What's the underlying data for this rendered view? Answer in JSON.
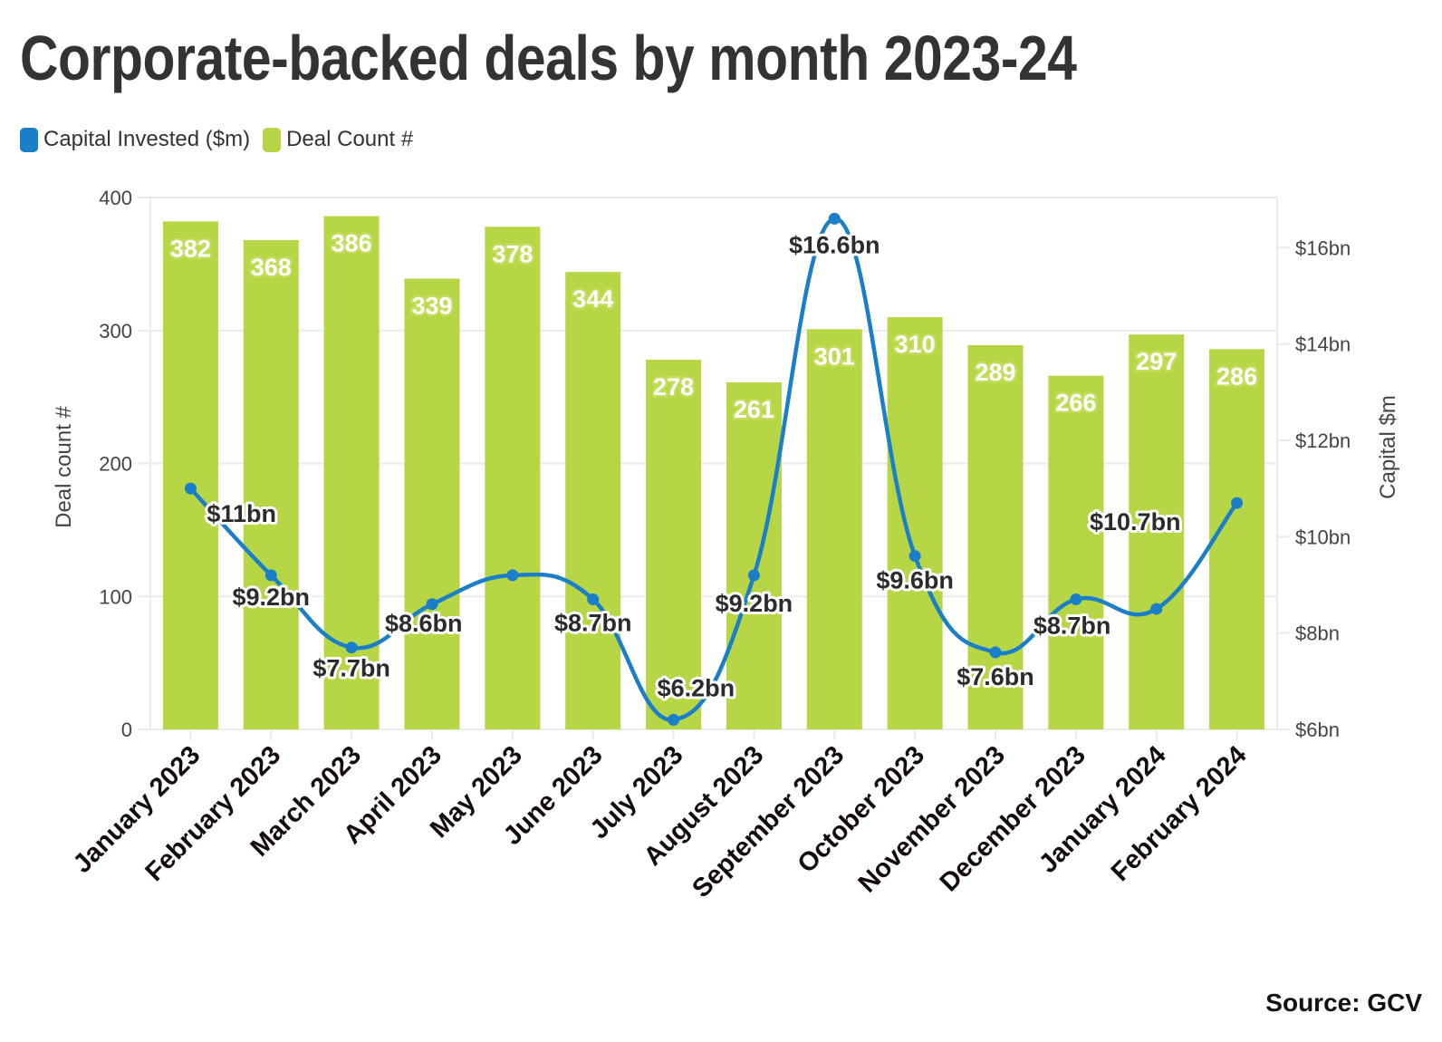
{
  "title": "Corporate-backed deals by month 2023-24",
  "source": "Source: GCV",
  "legend": [
    {
      "name": "Capital Invested ($m)",
      "color": "#1a7fc8",
      "icon": "rounded-square-swatch"
    },
    {
      "name": "Deal Count #",
      "color": "#b7d645",
      "icon": "rounded-square-swatch"
    }
  ],
  "chart_data": {
    "type": "bar+line",
    "title": "Corporate-backed deals by month 2023-24",
    "categories": [
      "January 2023",
      "February 2023",
      "March 2023",
      "April 2023",
      "May 2023",
      "June 2023",
      "July 2023",
      "August 2023",
      "September 2023",
      "October 2023",
      "November 2023",
      "December 2023",
      "January 2024",
      "February 2024"
    ],
    "series": [
      {
        "name": "Deal Count #",
        "type": "bar",
        "axis": "left",
        "color": "#b7d645",
        "values": [
          382,
          368,
          386,
          339,
          378,
          344,
          278,
          261,
          301,
          310,
          289,
          266,
          297,
          286
        ],
        "labels": [
          "382",
          "368",
          "386",
          "339",
          "378",
          "344",
          "278",
          "261",
          "301",
          "310",
          "289",
          "266",
          "297",
          "286"
        ]
      },
      {
        "name": "Capital Invested ($m)",
        "type": "line",
        "axis": "right",
        "color": "#1a7fc8",
        "smooth": true,
        "values": [
          11.0,
          9.2,
          7.7,
          8.6,
          9.2,
          8.7,
          6.2,
          9.2,
          16.6,
          9.6,
          7.6,
          8.7,
          8.5,
          10.7
        ],
        "labels": [
          "$11bn",
          "$9.2bn",
          "$7.7bn",
          "$8.6bn",
          null,
          "$8.7bn",
          "$6.2bn",
          "$9.2bn",
          "$16.6bn",
          "$9.6bn",
          "$7.6bn",
          "$8.7bn",
          null,
          "$10.7bn"
        ]
      }
    ],
    "left_axis": {
      "label": "Deal count #",
      "range": [
        0,
        400
      ],
      "ticks": [
        0,
        100,
        200,
        300,
        400
      ],
      "tick_labels": [
        "0",
        "100",
        "200",
        "300",
        "400"
      ]
    },
    "right_axis": {
      "label": "Capital $m",
      "range_bn": [
        6,
        17.04
      ],
      "ticks": [
        6,
        8,
        10,
        12,
        14,
        16
      ],
      "tick_labels": [
        "$6bn",
        "$8bn",
        "$10bn",
        "$12bn",
        "$14bn",
        "$16bn"
      ]
    },
    "grid": true,
    "legend_position": "top-left",
    "xlabel_rotation": "-45deg"
  }
}
